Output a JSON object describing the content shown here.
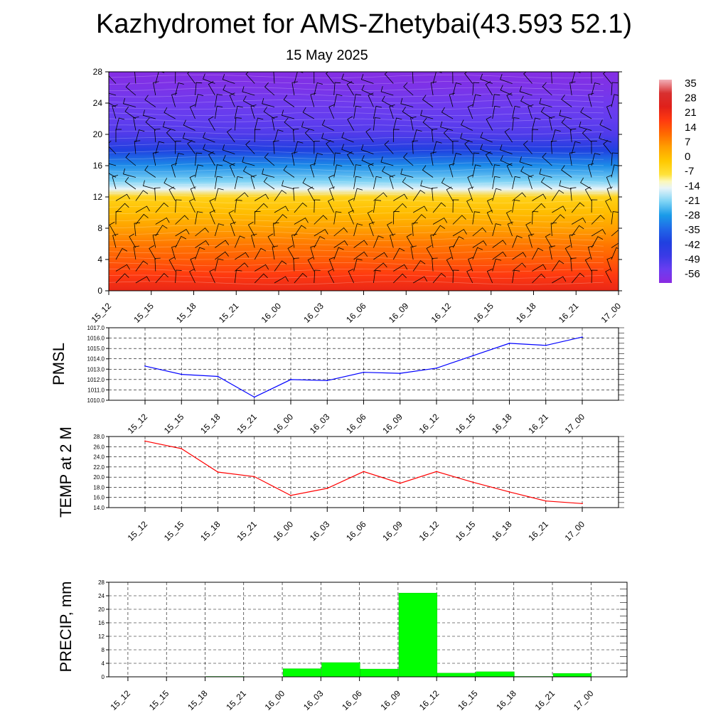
{
  "page": {
    "title": "Kazhydromet for AMS-Zhetybai(43.593 52.1)",
    "subtitle": "15 May 2025"
  },
  "time_labels": [
    "15_12",
    "15_15",
    "15_18",
    "15_21",
    "16_00",
    "16_03",
    "16_06",
    "16_09",
    "16_12",
    "16_15",
    "16_18",
    "16_21",
    "17_00"
  ],
  "colors": {
    "pmsl_line": "#0000ff",
    "temp_line": "#ff0000",
    "precip_bar": "#00ff00",
    "gridline": "#000000"
  },
  "chart_data": [
    {
      "type": "heatmap",
      "title": "",
      "xlabel": "",
      "ylabel": "",
      "x": [
        "15_12",
        "15_15",
        "15_18",
        "15_21",
        "16_00",
        "16_03",
        "16_06",
        "16_09",
        "16_12",
        "16_15",
        "16_18",
        "16_21",
        "17_00"
      ],
      "yticks": [
        0,
        4,
        8,
        12,
        16,
        20,
        24,
        28
      ],
      "ylim": [
        0,
        28
      ],
      "colorbar_ticks": [
        35,
        28,
        21,
        14,
        7,
        0,
        -7,
        -14,
        -21,
        -28,
        -35,
        -42,
        -49,
        -56
      ],
      "colorbar_range": [
        -63,
        42
      ],
      "temperature_profile": [
        {
          "level": 0,
          "value": 26
        },
        {
          "level": 2,
          "value": 21
        },
        {
          "level": 4,
          "value": 16
        },
        {
          "level": 6,
          "value": 12
        },
        {
          "level": 8,
          "value": 7
        },
        {
          "level": 10,
          "value": 2
        },
        {
          "level": 12,
          "value": -3
        },
        {
          "level": 13,
          "value": -14
        },
        {
          "level": 14,
          "value": -21
        },
        {
          "level": 16,
          "value": -30
        },
        {
          "level": 18,
          "value": -42
        },
        {
          "level": 20,
          "value": -52
        },
        {
          "level": 22,
          "value": -55
        },
        {
          "level": 24,
          "value": -57
        },
        {
          "level": 26,
          "value": -60
        },
        {
          "level": 28,
          "value": -62
        }
      ],
      "wind_barbs": "present"
    },
    {
      "type": "line",
      "title": "",
      "xlabel": "",
      "ylabel": "PMSL",
      "categories": [
        "15_12",
        "15_15",
        "15_18",
        "15_21",
        "16_00",
        "16_03",
        "16_06",
        "16_09",
        "16_12",
        "16_15",
        "16_18",
        "16_21",
        "17_00"
      ],
      "series": [
        {
          "values": [
            1013.3,
            1012.5,
            1012.3,
            1010.3,
            1012.0,
            1011.9,
            1012.7,
            1012.6,
            1013.1,
            1014.3,
            1015.5,
            1015.3,
            1016.1
          ]
        }
      ],
      "ylim": [
        1010.0,
        1017.0
      ],
      "yticks": [
        "1010.0",
        "1011.0",
        "1012.0",
        "1013.0",
        "1014.0",
        "1015.0",
        "1016.0",
        "1017.0"
      ],
      "grid": true
    },
    {
      "type": "line",
      "title": "",
      "xlabel": "",
      "ylabel": "TEMP at 2 M",
      "categories": [
        "15_12",
        "15_15",
        "15_18",
        "15_21",
        "16_00",
        "16_03",
        "16_06",
        "16_09",
        "16_12",
        "16_15",
        "16_18",
        "16_21",
        "17_00"
      ],
      "series": [
        {
          "values": [
            27.1,
            25.6,
            21.0,
            20.1,
            16.4,
            17.8,
            21.1,
            18.8,
            21.1,
            19.0,
            17.1,
            15.3,
            14.8
          ]
        }
      ],
      "ylim": [
        14.0,
        28.0
      ],
      "yticks": [
        "14.0",
        "16.0",
        "18.0",
        "20.0",
        "22.0",
        "24.0",
        "26.0",
        "28.0"
      ],
      "grid": true
    },
    {
      "type": "bar",
      "title": "",
      "xlabel": "",
      "ylabel": "PRECIP, mm",
      "categories": [
        "15_12",
        "15_15",
        "15_18",
        "15_21",
        "16_00",
        "16_03",
        "16_06",
        "16_09",
        "16_12",
        "16_15",
        "16_18",
        "16_21",
        "17_00"
      ],
      "values": [
        0,
        0,
        0.1,
        0,
        2.4,
        4.2,
        2.3,
        24.8,
        1.1,
        1.5,
        0.1,
        1.0,
        0
      ],
      "ylim": [
        0,
        28
      ],
      "yticks": [
        "0",
        "4",
        "8",
        "12",
        "16",
        "20",
        "24",
        "28"
      ],
      "grid": true
    }
  ]
}
